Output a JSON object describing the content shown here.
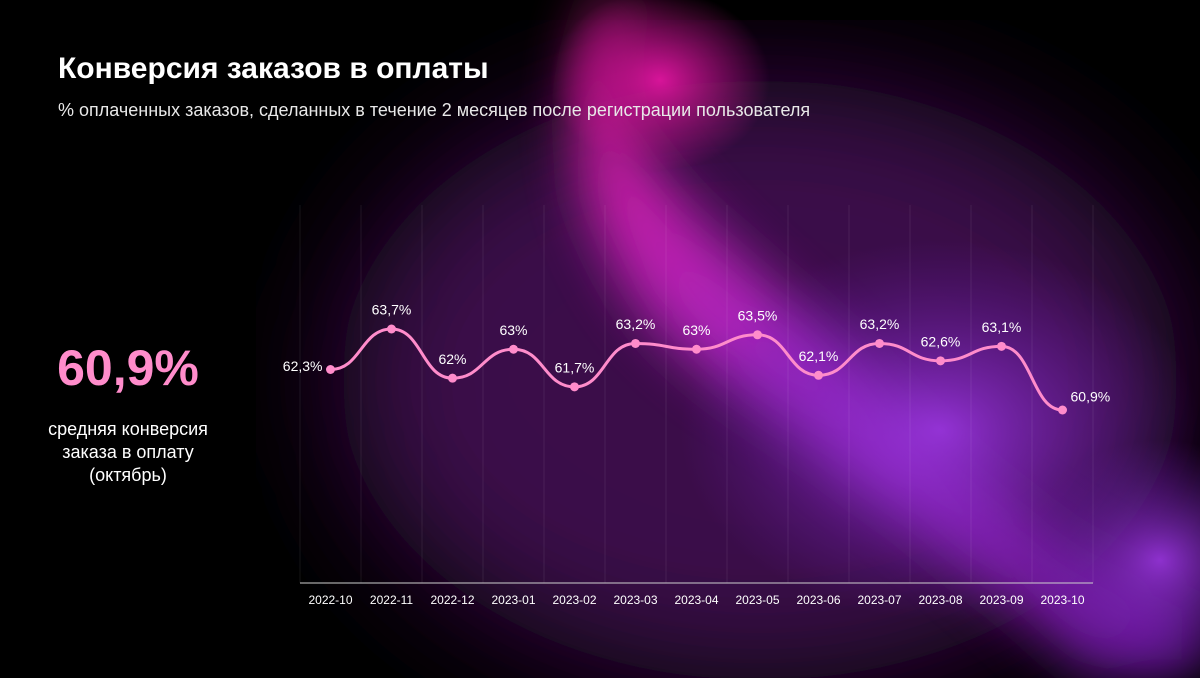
{
  "chart_data": {
    "type": "line",
    "title": "Конверсия заказов в оплаты",
    "subtitle": "% оплаченных заказов, сделанных в течение 2 месяцев после регистрации пользователя",
    "categories": [
      "2022-10",
      "2022-11",
      "2022-12",
      "2023-01",
      "2023-02",
      "2023-03",
      "2023-04",
      "2023-05",
      "2023-06",
      "2023-07",
      "2023-08",
      "2023-09",
      "2023-10"
    ],
    "series": [
      {
        "name": null,
        "color": "#ff8ccb",
        "values": [
          62.3,
          63.7,
          62,
          63,
          61.7,
          63.2,
          63,
          63.5,
          62.1,
          63.2,
          62.6,
          63.1,
          60.9
        ],
        "value_labels": [
          "62,3%",
          "63,7%",
          "62%",
          "63%",
          "61,7%",
          "63,2%",
          "63%",
          "63,5%",
          "62,1%",
          "63,2%",
          "62,6%",
          "63,1%",
          "60,9%"
        ]
      }
    ]
  },
  "kpi": {
    "value": "60,9%",
    "caption": [
      "средняя конверсия",
      "заказа в оплату",
      "(октябрь)"
    ]
  }
}
